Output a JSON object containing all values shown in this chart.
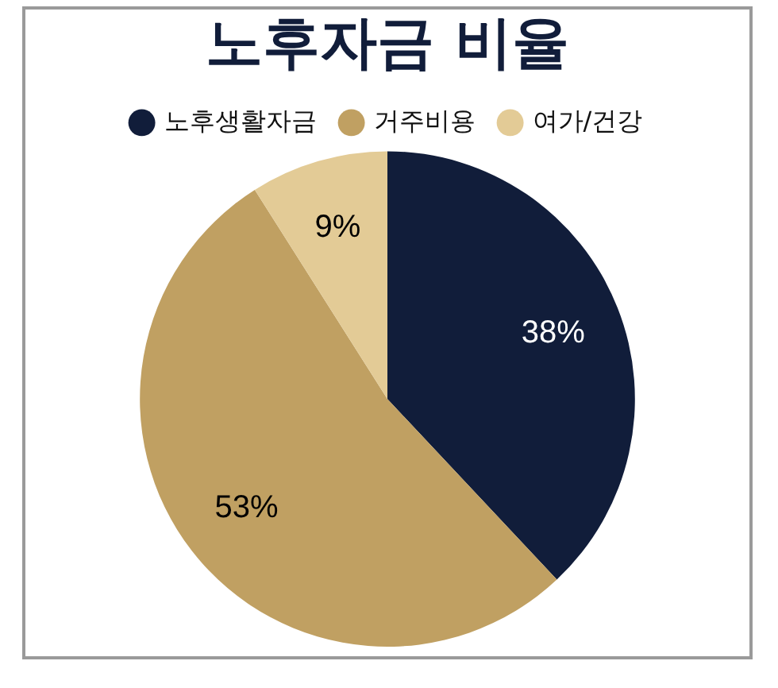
{
  "chart_data": {
    "type": "pie",
    "title": "노후자금 비율",
    "categories": [
      "노후생활자금",
      "거주비용",
      "여가/건강"
    ],
    "values": [
      38,
      53,
      9
    ],
    "colors": [
      "#111d3a",
      "#c0a062",
      "#e3cb96"
    ],
    "value_labels": [
      "38%",
      "53%",
      "9%"
    ],
    "legend": "top"
  }
}
